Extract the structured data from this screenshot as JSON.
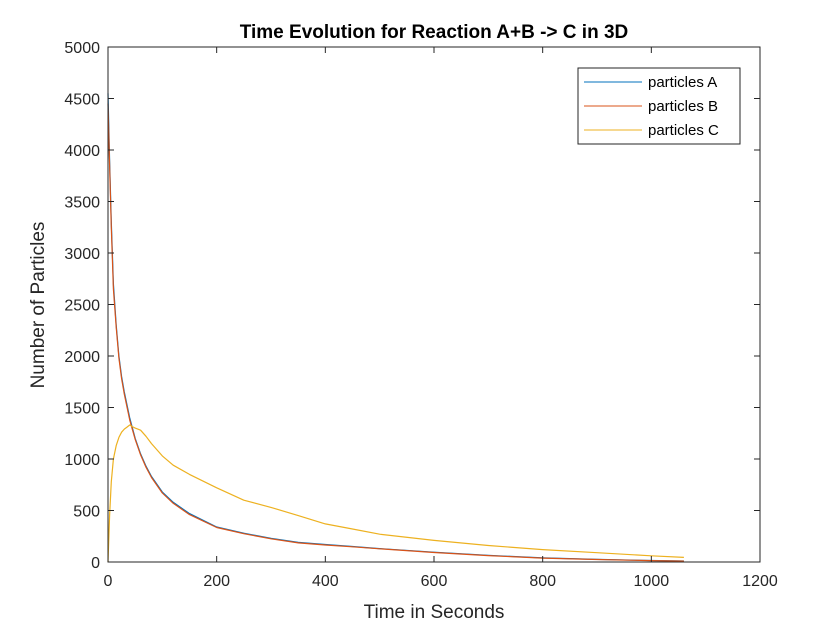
{
  "chart_data": {
    "type": "line",
    "title": "Time Evolution for Reaction A+B -> C in 3D",
    "xlabel": "Time in Seconds",
    "ylabel": "Number of Particles",
    "xlim": [
      0,
      1200
    ],
    "ylim": [
      0,
      5000
    ],
    "xticks": [
      0,
      200,
      400,
      600,
      800,
      1000,
      1200
    ],
    "yticks": [
      0,
      500,
      1000,
      1500,
      2000,
      2500,
      3000,
      3500,
      4000,
      4500,
      5000
    ],
    "xtick_labels": [
      "0",
      "200",
      "400",
      "600",
      "800",
      "1000",
      "1200"
    ],
    "ytick_labels": [
      "0",
      "500",
      "1000",
      "1500",
      "2000",
      "2500",
      "3000",
      "3500",
      "4000",
      "4500",
      "5000"
    ],
    "grid": false,
    "legend_position": "top-right",
    "series": [
      {
        "name": "particles A",
        "color": "#0072BD",
        "x": [
          0,
          3,
          6,
          10,
          15,
          20,
          25,
          30,
          40,
          50,
          60,
          70,
          80,
          100,
          120,
          150,
          200,
          250,
          300,
          350,
          400,
          450,
          500,
          600,
          700,
          800,
          900,
          1000,
          1060
        ],
        "y": [
          4550,
          3900,
          3300,
          2700,
          2300,
          2000,
          1800,
          1650,
          1400,
          1200,
          1050,
          930,
          830,
          680,
          580,
          470,
          340,
          280,
          230,
          190,
          170,
          150,
          130,
          95,
          65,
          40,
          25,
          15,
          10
        ]
      },
      {
        "name": "particles B",
        "color": "#D95319",
        "x": [
          0,
          3,
          6,
          10,
          15,
          20,
          25,
          30,
          40,
          50,
          60,
          70,
          80,
          100,
          120,
          150,
          200,
          250,
          300,
          350,
          400,
          450,
          500,
          600,
          700,
          800,
          900,
          1000,
          1060
        ],
        "y": [
          4450,
          3850,
          3250,
          2650,
          2280,
          1980,
          1780,
          1630,
          1380,
          1190,
          1040,
          920,
          820,
          670,
          570,
          460,
          335,
          275,
          225,
          185,
          165,
          148,
          128,
          92,
          62,
          38,
          24,
          14,
          9
        ]
      },
      {
        "name": "particles C",
        "color": "#EDB120",
        "x": [
          0,
          3,
          6,
          10,
          15,
          20,
          25,
          30,
          35,
          40,
          45,
          50,
          60,
          70,
          80,
          100,
          120,
          150,
          200,
          250,
          300,
          350,
          400,
          450,
          500,
          600,
          700,
          800,
          900,
          1000,
          1060
        ],
        "y": [
          0,
          450,
          780,
          1000,
          1130,
          1210,
          1260,
          1290,
          1310,
          1330,
          1315,
          1300,
          1280,
          1220,
          1150,
          1030,
          940,
          850,
          720,
          600,
          530,
          450,
          370,
          320,
          270,
          210,
          160,
          120,
          90,
          60,
          45
        ]
      }
    ]
  }
}
